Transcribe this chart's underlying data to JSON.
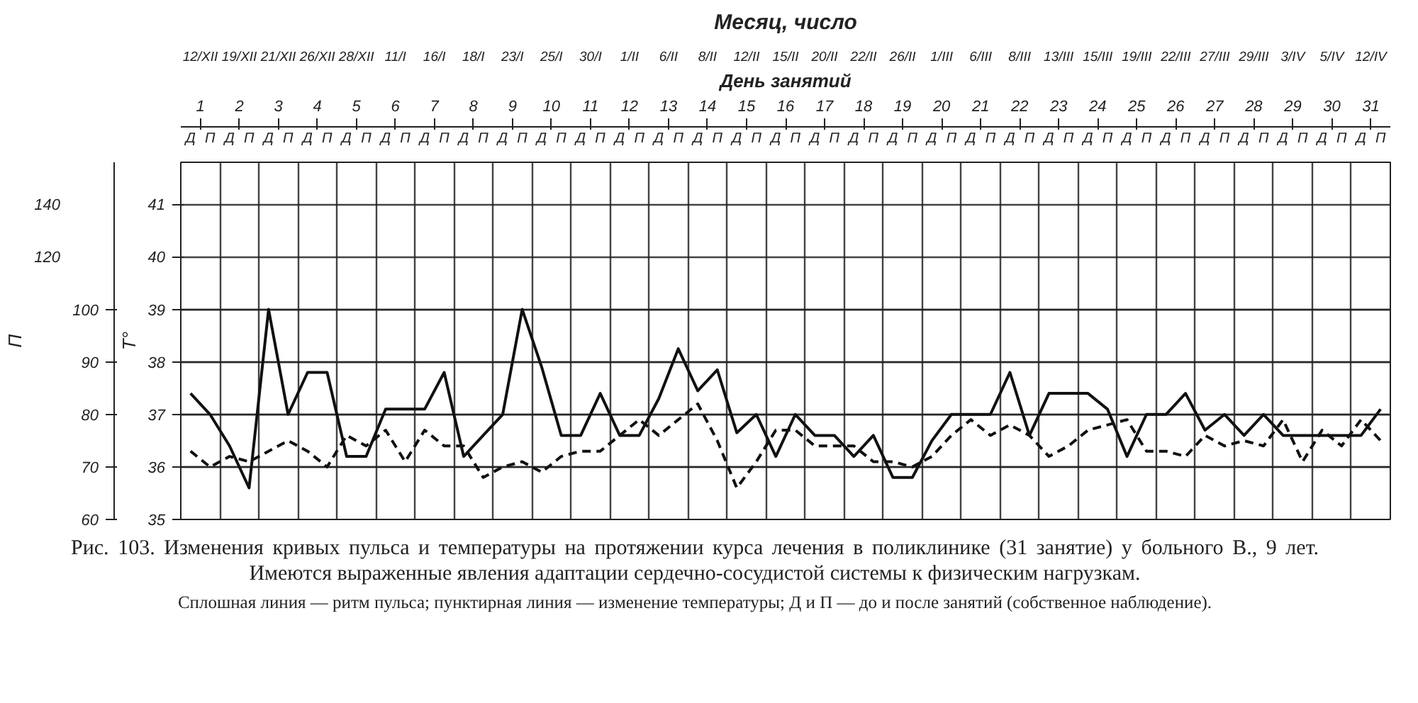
{
  "chart_data": {
    "type": "line",
    "title": "Месяц, число",
    "categories": [
      "Д",
      "П",
      "Д",
      "П",
      "Д",
      "П",
      "Д",
      "П",
      "Д",
      "П",
      "Д",
      "П",
      "Д",
      "П",
      "Д",
      "П",
      "Д",
      "П",
      "Д",
      "П",
      "Д",
      "П",
      "Д",
      "П",
      "Д",
      "П",
      "Д",
      "П",
      "Д",
      "П",
      "Д",
      "П",
      "Д",
      "П",
      "Д",
      "П",
      "Д",
      "П",
      "Д",
      "П",
      "Д",
      "П",
      "Д",
      "П",
      "Д",
      "П",
      "Д",
      "П",
      "Д",
      "П",
      "Д",
      "П",
      "Д",
      "П",
      "Д",
      "П",
      "Д",
      "П",
      "Д",
      "П",
      "Д",
      "П"
    ],
    "x2label": "День занятий",
    "x2lim": [
      0.5,
      31.5
    ],
    "x2ticks": [
      1,
      2,
      3,
      4,
      5,
      6,
      7,
      8,
      9,
      10,
      11,
      12,
      13,
      14,
      15,
      16,
      17,
      18,
      19,
      20,
      21,
      22,
      23,
      24,
      25,
      26,
      27,
      28,
      29,
      30,
      31
    ],
    "ylabel": "П",
    "ylim": [
      60,
      128
    ],
    "yticks": [
      60,
      70,
      80,
      90,
      100
    ],
    "y3lim": [
      20,
      156
    ],
    "y3ticks": [
      120,
      140
    ],
    "y2label": "T°",
    "y2lim": [
      35,
      41.8
    ],
    "y2ticks": [
      35,
      36,
      37,
      38,
      39,
      40,
      41
    ],
    "grid": true,
    "series": [
      {
        "color": "#111111",
        "line_style": "solid",
        "values": [
          84,
          80,
          74,
          66,
          100,
          80,
          88,
          88,
          72,
          72,
          81,
          81,
          81,
          88,
          72,
          76,
          80,
          100,
          89,
          76,
          76,
          84,
          76,
          76,
          83,
          92.5,
          84.5,
          88.5,
          76.5,
          80,
          72,
          80,
          76,
          76,
          72,
          76,
          68,
          68,
          75,
          80,
          80,
          80,
          88,
          76,
          84,
          84,
          84,
          81,
          72,
          80,
          80,
          84,
          77,
          80,
          76,
          80,
          76,
          76,
          76,
          76,
          76,
          81
        ]
      },
      {
        "color": "#111111",
        "axis": "y2",
        "line_style": "dashed",
        "values": [
          36.3,
          36.0,
          36.2,
          36.1,
          36.3,
          36.5,
          36.3,
          36.0,
          36.6,
          36.4,
          36.7,
          36.1,
          36.7,
          36.4,
          36.4,
          35.8,
          36.0,
          36.1,
          35.9,
          36.2,
          36.3,
          36.3,
          36.6,
          36.9,
          36.6,
          36.9,
          37.2,
          36.5,
          35.6,
          36.1,
          36.7,
          36.7,
          36.4,
          36.4,
          36.4,
          36.1,
          36.1,
          36.0,
          36.2,
          36.6,
          36.9,
          36.6,
          36.8,
          36.6,
          36.2,
          36.4,
          36.7,
          36.8,
          36.9,
          36.3,
          36.3,
          36.2,
          36.6,
          36.4,
          36.5,
          36.4,
          36.9,
          36.1,
          36.7,
          36.4,
          36.9,
          36.5
        ]
      }
    ],
    "annotations": [
      "12/XII",
      "19/XII",
      "21/XII",
      "26/XII",
      "28/XII",
      "11/I",
      "16/I",
      "18/I",
      "23/I",
      "25/I",
      "30/I",
      "1/II",
      "6/II",
      "8/II",
      "12/II",
      "15/II",
      "20/II",
      "22/II",
      "26/II",
      "1/III",
      "6/III",
      "8/III",
      "13/III",
      "15/III",
      "19/III",
      "22/III",
      "27/III",
      "29/III",
      "3/IV",
      "5/IV",
      "12/IV",
      "Рис. 103. Изменения кривых пульса и температуры на протяжении курса лечения в поликлинике (31 занятие) у больного В., 9 лет. Имеются выраженные явления адаптации сердечно-сосудистой системы к физическим нагрузкам.",
      "Сплошная линия — ритм пульса; пунктирная линия — изменение температуры; Д и П — до и после занятий (собственное наблюдение)."
    ]
  }
}
